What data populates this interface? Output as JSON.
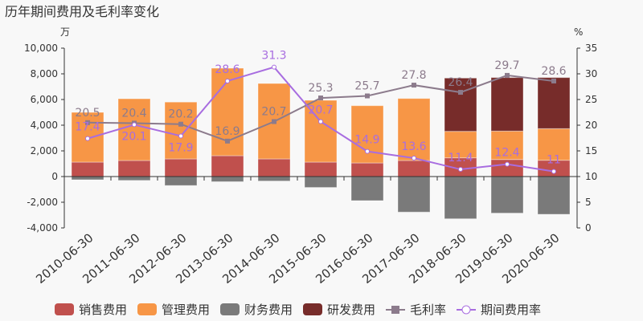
{
  "chart_data": {
    "type": "bar+line",
    "title": "历年期间费用及毛利率变化",
    "left_unit": "万",
    "right_unit": "%",
    "categories": [
      "2010-06-30",
      "2011-06-30",
      "2012-06-30",
      "2013-06-30",
      "2014-06-30",
      "2015-06-30",
      "2016-06-30",
      "2017-06-30",
      "2018-06-30",
      "2019-06-30",
      "2020-06-30"
    ],
    "left_axis": {
      "min": -4000,
      "max": 10000,
      "ticks": [
        "-4,000",
        "-2,000",
        "0",
        "2,000",
        "4,000",
        "6,000",
        "8,000",
        "10,000"
      ]
    },
    "right_axis": {
      "min": 0,
      "max": 35,
      "ticks": [
        "0",
        "5",
        "10",
        "15",
        "20",
        "25",
        "30",
        "35"
      ]
    },
    "bar_series": [
      {
        "name": "销售费用",
        "color": "#c0504d",
        "values": [
          1125,
          1250,
          1375,
          1625,
          1375,
          1125,
          1060,
          1250,
          1460,
          1330,
          1270
        ]
      },
      {
        "name": "管理费用",
        "color": "#f79646",
        "values": [
          3875,
          4810,
          4425,
          6815,
          5875,
          4815,
          4460,
          4830,
          2060,
          2210,
          2460
        ]
      },
      {
        "name": "财务费用",
        "color": "#7a7a7a",
        "values": [
          -250,
          -300,
          -700,
          -400,
          -350,
          -850,
          -1875,
          -2770,
          -3290,
          -2850,
          -2940
        ]
      },
      {
        "name": "研发费用",
        "color": "#772c2a",
        "values": [
          0,
          0,
          0,
          0,
          0,
          0,
          0,
          0,
          4150,
          4170,
          3980
        ]
      }
    ],
    "line_series": [
      {
        "name": "毛利率",
        "color": "#8c7b8c",
        "values": [
          20.5,
          20.4,
          20.2,
          16.9,
          20.7,
          25.3,
          25.7,
          27.8,
          26.4,
          29.7,
          28.6
        ],
        "labels": [
          "20.5",
          "20.4",
          "20.2",
          "16.9",
          "20.7",
          "25.3",
          "25.7",
          "27.8",
          "26.4",
          "29.7",
          "28.6"
        ]
      },
      {
        "name": "期间费用率",
        "color": "#a86de0",
        "values": [
          17.4,
          20.1,
          17.9,
          28.6,
          31.3,
          20.7,
          14.9,
          13.6,
          11.4,
          12.4,
          11
        ],
        "labels": [
          "17.4",
          "20.1",
          "17.9",
          "28.6",
          "31.3",
          "20.7",
          "14.9",
          "13.6",
          "11.4",
          "12.4",
          "11"
        ]
      }
    ],
    "legend_position": "bottom",
    "grid": false
  }
}
